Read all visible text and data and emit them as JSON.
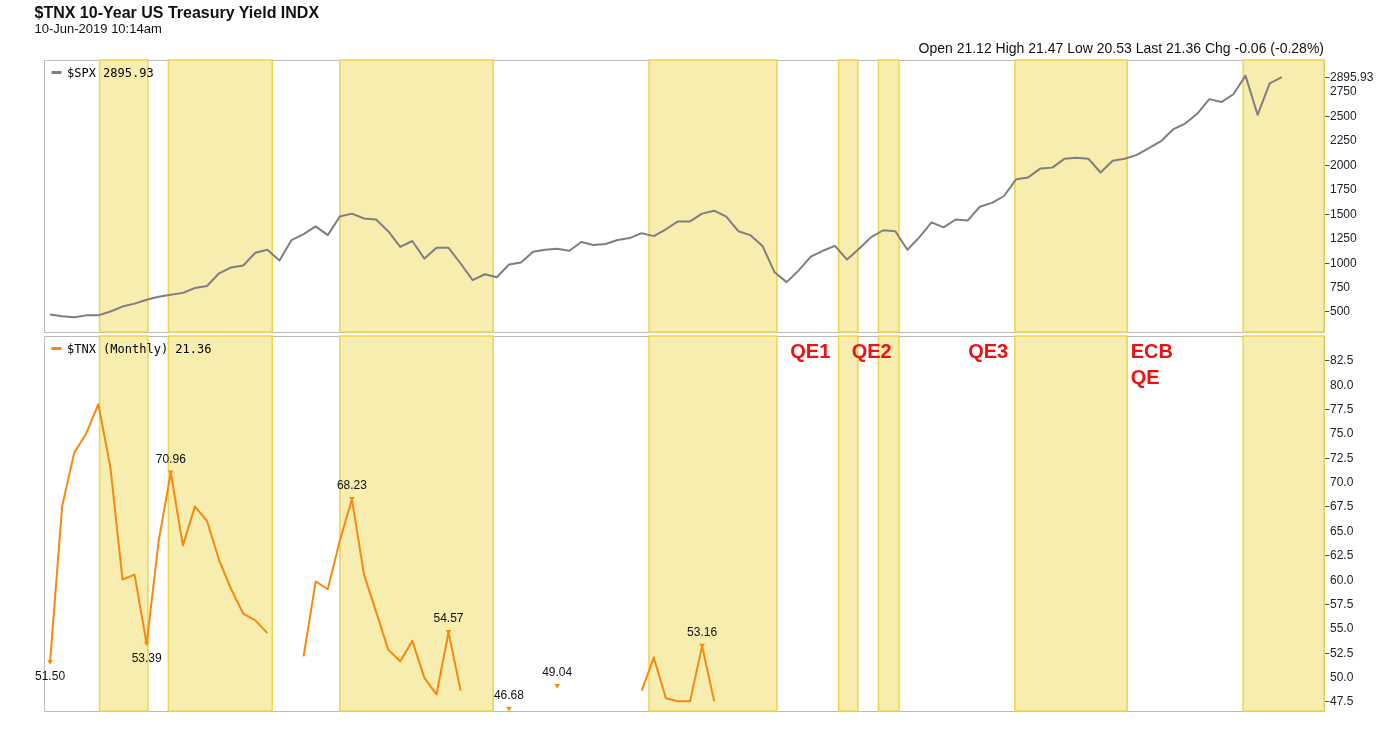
{
  "chart_data": [
    {
      "type": "line",
      "title": "$TNX 10-Year US Treasury Yield INDX",
      "subtitle": "10-Jun-2019 10:14am",
      "tick_labels": "y",
      "legend": "top left",
      "marker": "none",
      "categories": [
        null,
        null,
        null,
        null,
        null,
        null,
        null,
        null,
        null,
        null,
        null,
        null,
        null,
        null,
        null,
        null,
        null,
        null,
        null,
        null,
        null,
        null,
        null,
        null,
        null,
        null,
        null,
        null,
        null,
        null,
        null,
        null,
        null,
        null,
        null,
        null,
        null,
        null,
        null,
        null,
        null,
        null,
        null,
        null,
        null,
        null,
        null,
        null,
        null,
        null,
        null,
        null,
        null,
        null,
        null,
        null,
        null,
        null,
        null,
        null,
        null,
        null,
        null,
        null,
        null,
        null,
        null,
        null,
        null,
        null,
        null,
        null,
        null,
        null,
        null,
        null,
        null,
        null,
        null,
        null,
        null,
        null,
        null,
        null,
        null,
        null,
        null,
        null,
        null,
        null,
        null,
        null,
        null,
        null,
        null,
        null,
        null,
        null,
        null,
        null,
        null,
        null,
        null,
        null,
        null,
        null
      ],
      "ylim": [
        290,
        3070
      ],
      "yticks": [
        500,
        750,
        1000,
        1250,
        1500,
        1750,
        2000,
        2250,
        2500,
        2750,
        {
          "value": 2895.93,
          "label": "2895.93"
        }
      ],
      "annotations": [
        "Open 21.12  High 21.47  Low 20.53  Last 21.36  Chg -0.06 (-0.28%)"
      ],
      "series": [
        {
          "name": "$SPX 2895.93",
          "color": "#7f7f7f",
          "values": [
            470,
            450,
            440,
            460,
            460,
            500,
            550,
            580,
            620,
            650,
            670,
            690,
            740,
            760,
            890,
            950,
            970,
            1100,
            1130,
            1020,
            1230,
            1290,
            1370,
            1280,
            1470,
            1500,
            1450,
            1440,
            1320,
            1160,
            1220,
            1040,
            1150,
            1150,
            990,
            820,
            880,
            850,
            980,
            1000,
            1110,
            1130,
            1140,
            1120,
            1210,
            1180,
            1190,
            1230,
            1250,
            1300,
            1270,
            1340,
            1420,
            1420,
            1500,
            1530,
            1470,
            1320,
            1280,
            1170,
            900,
            800,
            920,
            1060,
            1120,
            1170,
            1030,
            1140,
            1260,
            1330,
            1320,
            1130,
            1260,
            1410,
            1360,
            1440,
            1430,
            1570,
            1610,
            1680,
            1850,
            1870,
            1960,
            1970,
            2060,
            2070,
            2060,
            1920,
            2040,
            2060,
            2100,
            2170,
            2240,
            2360,
            2420,
            2520,
            2670,
            2640,
            2720,
            2910,
            2510,
            2830,
            2895.93,
            null,
            null,
            null
          ]
        }
      ]
    },
    {
      "type": "line",
      "tick_labels": "y",
      "legend": "top left",
      "marker": "none",
      "categories": [
        null,
        null,
        null,
        null,
        null,
        null,
        null,
        null,
        null,
        null,
        null,
        null,
        null,
        null,
        null,
        null,
        null,
        null,
        null,
        null,
        null,
        null,
        null,
        null,
        null,
        null,
        null,
        null,
        null,
        null,
        null,
        null,
        null,
        null,
        null,
        null,
        null,
        null,
        null,
        null,
        null,
        null,
        null,
        null,
        null,
        null,
        null,
        null,
        null,
        null,
        null,
        null,
        null,
        null,
        null,
        null,
        null,
        null,
        null,
        null,
        null,
        null,
        null,
        null,
        null,
        null,
        null,
        null,
        null,
        null,
        null,
        null,
        null,
        null,
        null,
        null,
        null,
        null,
        null,
        null,
        null,
        null,
        null,
        null,
        null,
        null,
        null,
        null,
        null,
        null,
        null,
        null,
        null,
        null,
        null,
        null,
        null,
        null,
        null,
        null,
        null,
        null,
        null,
        null,
        null,
        null
      ],
      "ylim": [
        46.5,
        85
      ],
      "yticks": [
        47.5,
        {
          "value": 50,
          "label": "50.0"
        },
        52.5,
        {
          "value": 55,
          "label": "55.0"
        },
        57.5,
        {
          "value": 60,
          "label": "60.0"
        },
        62.5,
        {
          "value": 65,
          "label": "65.0"
        },
        67.5,
        {
          "value": 70,
          "label": "70.0"
        },
        72.5,
        {
          "value": 75,
          "label": "75.0"
        },
        77.5,
        {
          "value": 80,
          "label": "80.0"
        },
        82.5
      ],
      "annotations": [
        "QE1",
        "QE2",
        "QE3",
        "ECB\nQE"
      ],
      "series": [
        {
          "name": "$TNX (Monthly) 21.36",
          "color": "#f7890f",
          "values": [
            51.5,
            67.5,
            73,
            75,
            78,
            71.5,
            60,
            60.5,
            53.39,
            64,
            70.96,
            63.5,
            67.5,
            66,
            62,
            59,
            56.5,
            55.8,
            54.5,
            null,
            null,
            52.1,
            59.8,
            59,
            64,
            68.23,
            60.5,
            56.7,
            52.8,
            51.6,
            53.7,
            49.9,
            48.2,
            54.57,
            48.6,
            null,
            null,
            null,
            46.68,
            null,
            null,
            null,
            49.04,
            null,
            null,
            null,
            null,
            null,
            null,
            48.6,
            52,
            47.8,
            47.5,
            47.5,
            53.16,
            47.5,
            null,
            null,
            null,
            null,
            null,
            null,
            null,
            null,
            null,
            null,
            null,
            null,
            null,
            null,
            null,
            null,
            null,
            null,
            null,
            null,
            null,
            null,
            null,
            null,
            null,
            null,
            null,
            null,
            null,
            null,
            null,
            null,
            null,
            null,
            null,
            null,
            null,
            null,
            null,
            null,
            null,
            null,
            null,
            null,
            null,
            null,
            null,
            null,
            null,
            null
          ],
          "value_labels": [
            "51.50",
            null,
            null,
            null,
            null,
            null,
            null,
            null,
            "53.39",
            null,
            "70.96",
            null,
            null,
            null,
            null,
            null,
            null,
            null,
            null,
            null,
            null,
            null,
            null,
            null,
            null,
            "68.23",
            null,
            null,
            null,
            null,
            null,
            null,
            null,
            "54.57",
            null,
            null,
            null,
            null,
            "46.68",
            null,
            null,
            null,
            "49.04",
            null,
            null,
            null,
            null,
            null,
            null,
            null,
            null,
            null,
            null,
            null,
            "53.16",
            null,
            null,
            null,
            null,
            null,
            null,
            null,
            null,
            null,
            null,
            null,
            null,
            null,
            null,
            null,
            null,
            null,
            null,
            null,
            null,
            null,
            null,
            null,
            null,
            null,
            null,
            null,
            null,
            null,
            null,
            null,
            null,
            null,
            null,
            null,
            null,
            null,
            null,
            null,
            null,
            null,
            null,
            null,
            null,
            null,
            null,
            null,
            null,
            null,
            null,
            null
          ]
        }
      ]
    }
  ]
}
